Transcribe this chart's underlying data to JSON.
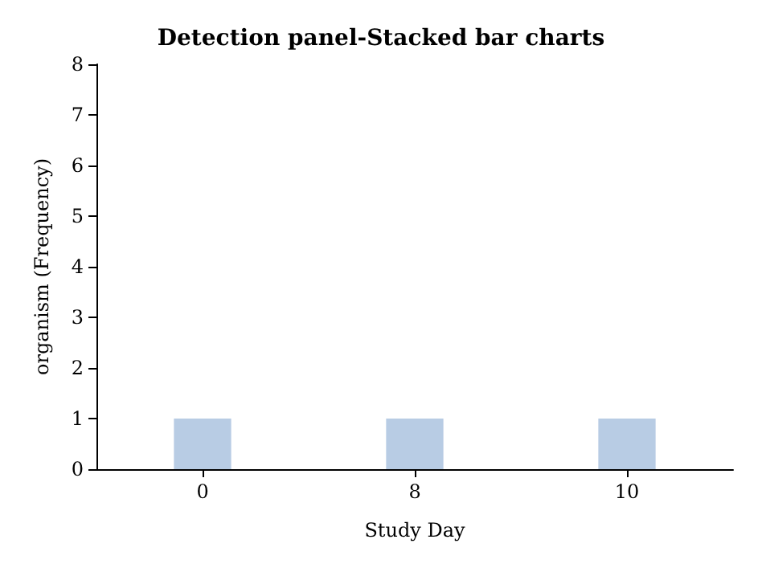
{
  "chart_data": {
    "type": "bar",
    "title": "Detection panel-Stacked bar charts",
    "xlabel": "Study Day",
    "ylabel": "organism (Frequency)",
    "categories": [
      "0",
      "8",
      "10"
    ],
    "values": [
      1,
      1,
      1
    ],
    "color": "#b8cce4",
    "ylim": [
      0,
      8
    ],
    "yticks": [
      0,
      1,
      2,
      3,
      4,
      5,
      6,
      7,
      8
    ],
    "grid": false
  }
}
